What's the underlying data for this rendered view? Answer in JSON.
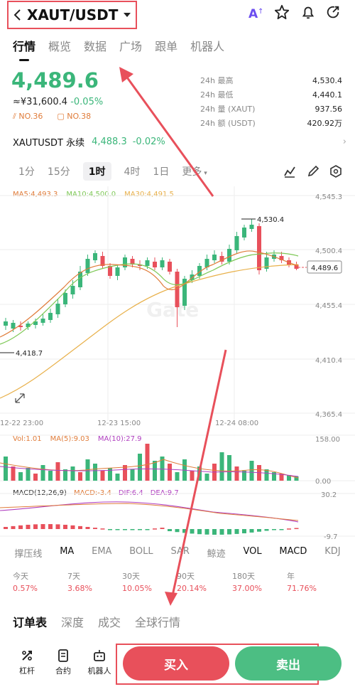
{
  "header": {
    "pair": "XAUT/USDT",
    "icons": [
      "back-icon",
      "dropdown-icon",
      "ai-icon",
      "star-icon",
      "bell-icon",
      "share-icon"
    ]
  },
  "tabs": [
    "行情",
    "概览",
    "数据",
    "广场",
    "跟单",
    "机器人"
  ],
  "ticker": {
    "last_price": "4,489.6",
    "cny": "≈¥31,600.4",
    "change": "-0.05%",
    "rank1": "NO.36",
    "rank2": "NO.38",
    "stats": [
      {
        "label": "24h  最高",
        "value": "4,530.4"
      },
      {
        "label": "24h  最低",
        "value": "4,440.1"
      },
      {
        "label": "24h  量 (XAUT)",
        "value": "937.56"
      },
      {
        "label": "24h  额 (USDT)",
        "value": "420.92万"
      }
    ]
  },
  "perp": {
    "name": "XAUTUSDT 永续",
    "price": "4,488.3",
    "change": "-0.02%"
  },
  "intervals": [
    "1分",
    "15分",
    "1时",
    "4时",
    "1日",
    "更多"
  ],
  "selected_interval": "1时",
  "ma_legend": {
    "ma5": "MA5:4,493.3",
    "ma10": "MA10:4,500.0",
    "ma30": "MA30:4,491.5"
  },
  "price_axis": [
    "4,545.3",
    "4,500.4",
    "4,455.4",
    "4,410.4",
    "4,365.4"
  ],
  "chart_labels": {
    "high": "4,530.4",
    "low": "4,418.7",
    "current": "4,489.6",
    "watermark": "Gate"
  },
  "time_axis": [
    "12-22 23:00",
    "12-23 15:00",
    "12-24 08:00"
  ],
  "vol_legend": {
    "vol": "Vol:1.01",
    "ma5": "MA(5):9.03",
    "ma10": "MA(10):27.9"
  },
  "vol_axis": [
    "158.00",
    "0.00"
  ],
  "macd_legend": {
    "macd": "MACD(12,26,9)",
    "val": "MACD:-3.4",
    "dif": "DIF:6.4",
    "dea": "DEA:9.7"
  },
  "macd_axis": [
    "30.2",
    "-9.7"
  ],
  "indicators": [
    "撑压线",
    "MA",
    "EMA",
    "BOLL",
    "SAR",
    "鲸迹",
    "VOL",
    "MACD",
    "KDJ"
  ],
  "performance": [
    {
      "label": "今天",
      "value": "0.57%"
    },
    {
      "label": "7天",
      "value": "3.68%"
    },
    {
      "label": "30天",
      "value": "10.05%"
    },
    {
      "label": "90天",
      "value": "20.14%"
    },
    {
      "label": "180天",
      "value": "37.00%"
    },
    {
      "label": "年",
      "value": "71.76%"
    }
  ],
  "bottom_tabs": [
    "订单表",
    "深度",
    "成交",
    "全球行情"
  ],
  "footer": {
    "lever": "杠杆",
    "contract": "合约",
    "bot": "机器人",
    "buy": "买入",
    "sell": "卖出"
  },
  "colors": {
    "up": "#3bb67a",
    "down": "#e8505b",
    "accent": "#e8505b",
    "ma5": "#e07c3a",
    "ma10": "#7dc855",
    "ma30": "#e8b04a"
  }
}
